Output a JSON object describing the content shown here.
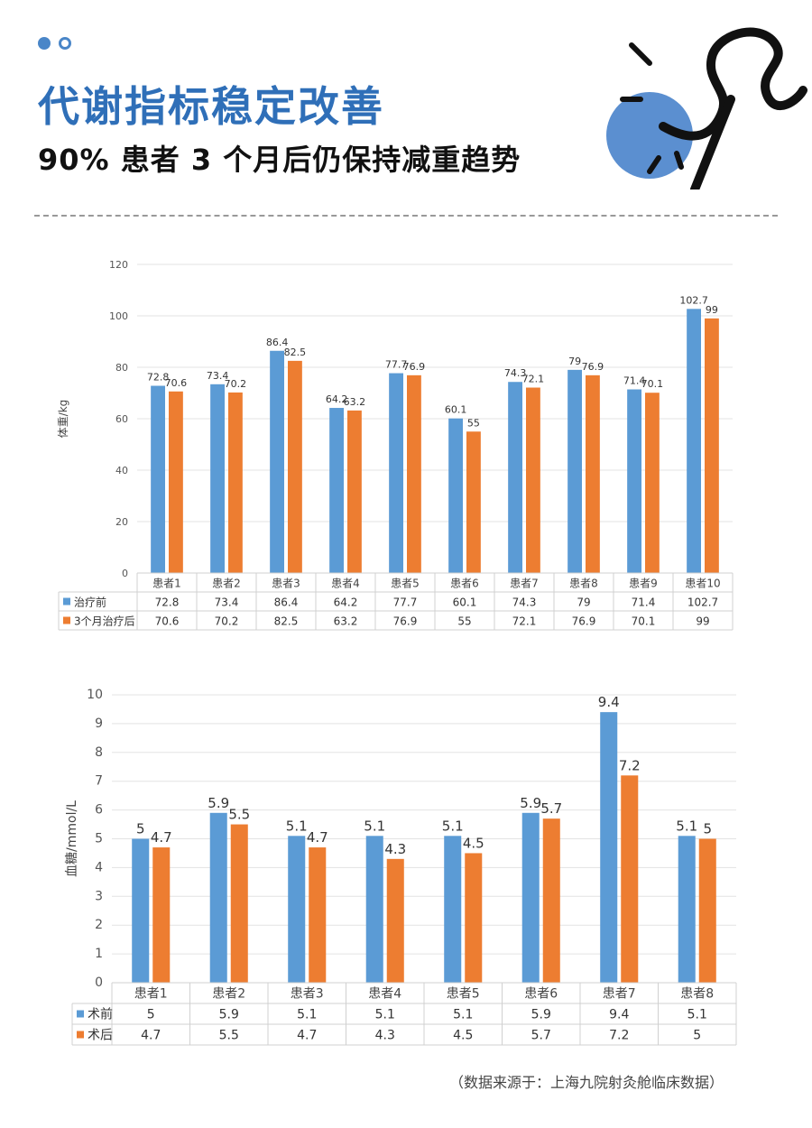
{
  "header": {
    "title": "代谢指标稳定改善",
    "subtitle": "90% 患者 3 个月后仍保持减重趋势"
  },
  "colors": {
    "accent": "#2f6fb8",
    "series_blue": "#5b9bd5",
    "series_orange": "#ed7d31"
  },
  "footer": {
    "source": "（数据来源于：上海九院射灸舱临床数据）"
  },
  "chart_data": [
    {
      "type": "bar",
      "ylabel": "体重/kg",
      "ylim": [
        0,
        120
      ],
      "yticks": [
        0,
        20,
        40,
        60,
        80,
        100,
        120
      ],
      "categories": [
        "患者1",
        "患者2",
        "患者3",
        "患者4",
        "患者5",
        "患者6",
        "患者7",
        "患者8",
        "患者9",
        "患者10"
      ],
      "series": [
        {
          "name": "治疗前",
          "color": "#5b9bd5",
          "values": [
            72.8,
            73.4,
            86.4,
            64.2,
            77.7,
            60.1,
            74.3,
            79,
            71.4,
            102.7
          ]
        },
        {
          "name": "3个月治疗后",
          "color": "#ed7d31",
          "values": [
            70.6,
            70.2,
            82.5,
            63.2,
            76.9,
            55,
            72.1,
            76.9,
            70.1,
            99
          ]
        }
      ],
      "data_table": true,
      "grid": true
    },
    {
      "type": "bar",
      "ylabel": "血糖/mmol/L",
      "ylim": [
        0,
        10
      ],
      "yticks": [
        0,
        1,
        2,
        3,
        4,
        5,
        6,
        7,
        8,
        9,
        10
      ],
      "categories": [
        "患者1",
        "患者2",
        "患者3",
        "患者4",
        "患者5",
        "患者6",
        "患者7",
        "患者8"
      ],
      "series": [
        {
          "name": "术前",
          "color": "#5b9bd5",
          "values": [
            5,
            5.9,
            5.1,
            5.1,
            5.1,
            5.9,
            9.4,
            5.1
          ]
        },
        {
          "name": "术后",
          "color": "#ed7d31",
          "values": [
            4.7,
            5.5,
            4.7,
            4.3,
            4.5,
            5.7,
            7.2,
            5
          ]
        }
      ],
      "data_table": true,
      "grid": true
    }
  ]
}
